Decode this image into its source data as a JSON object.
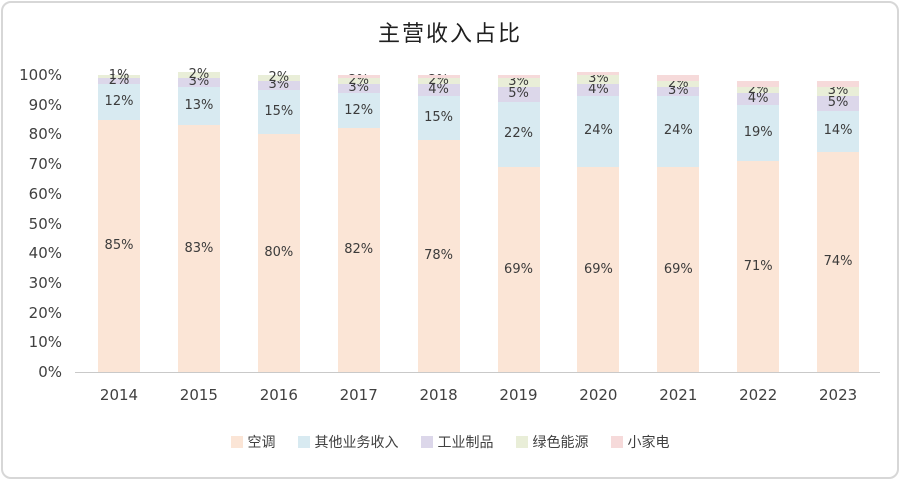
{
  "title": "主营收入占比",
  "chart_data": {
    "type": "bar",
    "subtype": "stacked-percentage-column",
    "title": "主营收入占比",
    "categories": [
      "2014",
      "2015",
      "2016",
      "2017",
      "2018",
      "2019",
      "2020",
      "2021",
      "2022",
      "2023"
    ],
    "series": [
      {
        "name": "空调",
        "color": "#fbe5d6",
        "values": [
          85,
          83,
          80,
          82,
          78,
          69,
          69,
          69,
          71,
          74
        ],
        "labels_shown": true
      },
      {
        "name": "其他业务收入",
        "color": "#d8eaf1",
        "values": [
          12,
          13,
          15,
          12,
          15,
          22,
          24,
          24,
          19,
          14
        ],
        "labels_shown": true
      },
      {
        "name": "工业制品",
        "color": "#dcd7ea",
        "values": [
          2,
          3,
          3,
          3,
          4,
          5,
          4,
          3,
          4,
          5
        ],
        "labels_shown": true
      },
      {
        "name": "绿色能源",
        "color": "#e9eed8",
        "values": [
          1,
          2,
          2,
          2,
          2,
          3,
          3,
          2,
          2,
          3
        ],
        "labels_shown": true
      },
      {
        "name": "小家电",
        "color": "#f6dada",
        "values": [
          0,
          0,
          0,
          1,
          1,
          1,
          1,
          2,
          2,
          2
        ],
        "labels_shown": false
      }
    ],
    "data_label_format": "{value}%",
    "xlabel": "",
    "ylabel": "",
    "ylim": [
      0,
      100
    ],
    "y_ticks": [
      "0%",
      "10%",
      "20%",
      "30%",
      "40%",
      "50%",
      "60%",
      "70%",
      "80%",
      "90%",
      "100%"
    ],
    "grid": false,
    "legend_position": "bottom",
    "legend_items": [
      "空调",
      "其他业务收入",
      "工业制品",
      "绿色能源",
      "小家电"
    ]
  }
}
